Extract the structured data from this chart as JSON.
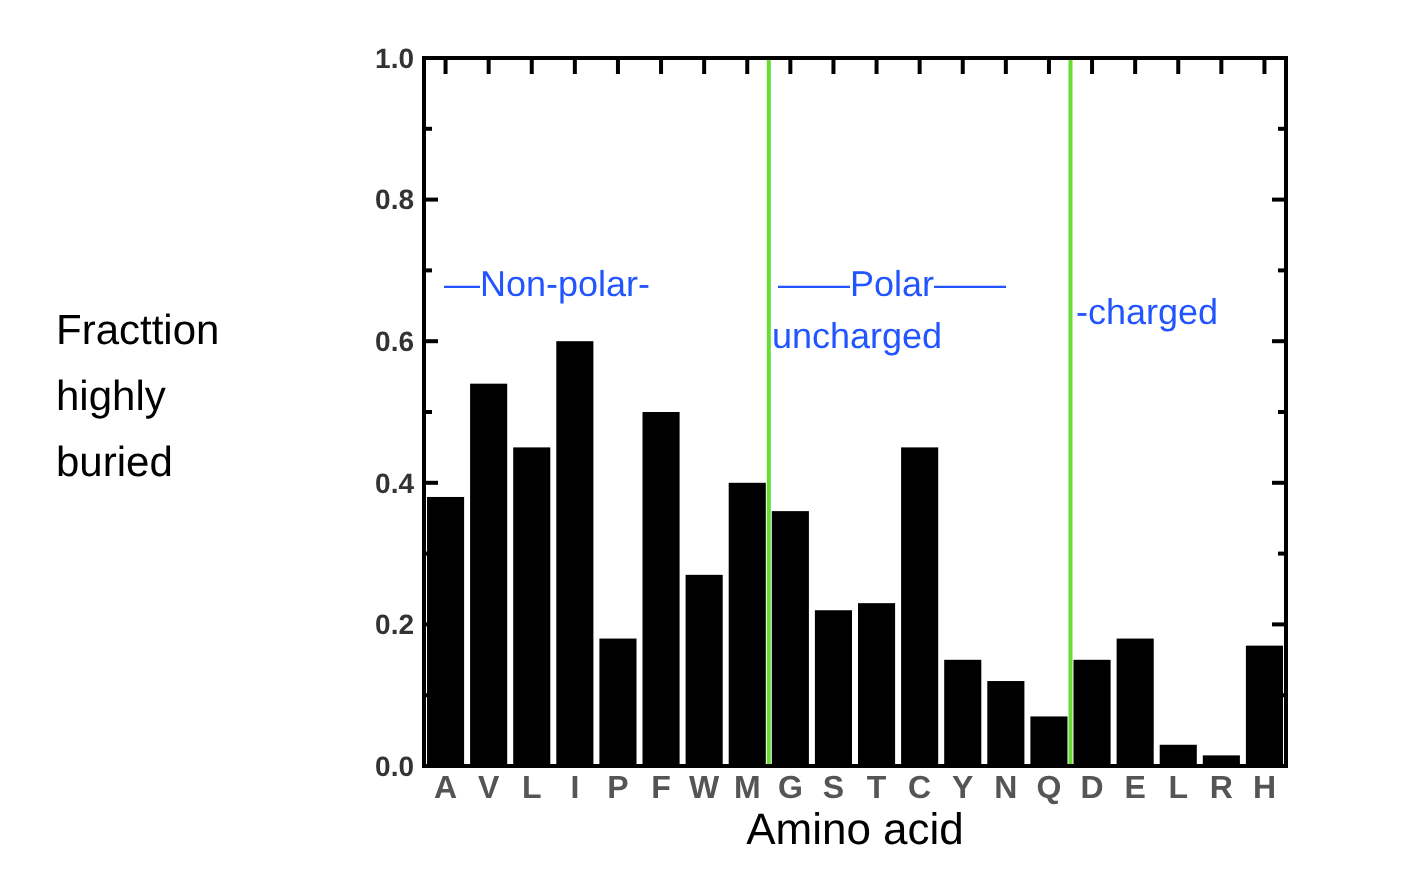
{
  "chart_data": {
    "type": "bar",
    "xlabel": "Amino acid",
    "ylabel": "Fracttion highly buried",
    "categories": [
      "A",
      "V",
      "L",
      "I",
      "P",
      "F",
      "W",
      "M",
      "G",
      "S",
      "T",
      "C",
      "Y",
      "N",
      "Q",
      "D",
      "E",
      "L",
      "R",
      "H"
    ],
    "values": [
      0.38,
      0.54,
      0.45,
      0.6,
      0.18,
      0.5,
      0.27,
      0.4,
      0.36,
      0.22,
      0.23,
      0.45,
      0.15,
      0.12,
      0.07,
      0.15,
      0.18,
      0.03,
      0.015,
      0.17
    ],
    "color": "#000000",
    "ylim": [
      0,
      1
    ],
    "yticks": [
      {
        "value": 0,
        "label": "0.0"
      },
      {
        "value": 0.1,
        "label": null
      },
      {
        "value": 0.2,
        "label": "0.2"
      },
      {
        "value": 0.3,
        "label": null
      },
      {
        "value": 0.4,
        "label": "0.4"
      },
      {
        "value": 0.5,
        "label": null
      },
      {
        "value": 0.6,
        "label": "0.6"
      },
      {
        "value": 0.7,
        "label": null
      },
      {
        "value": 0.8,
        "label": "0.8"
      },
      {
        "value": 0.9,
        "label": null
      },
      {
        "value": 1,
        "label": "1.0"
      }
    ],
    "annotations": [
      "—Non-polar-",
      "——Polar——",
      "uncharged",
      "-charged"
    ]
  }
}
